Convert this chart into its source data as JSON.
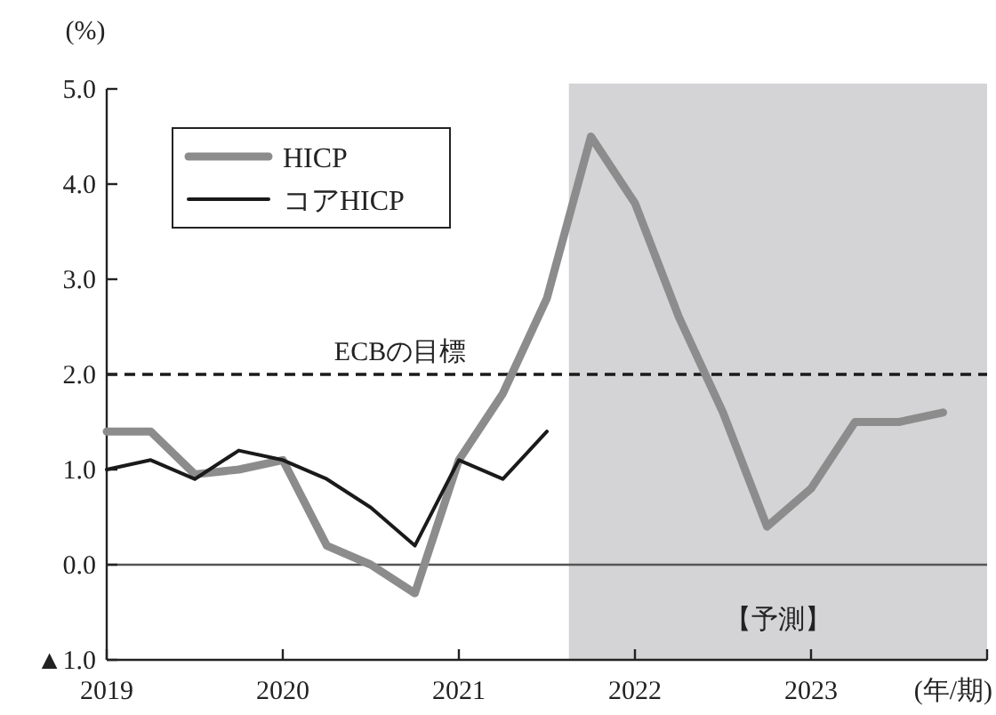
{
  "chart_data": {
    "type": "line",
    "ylabel": "(%)",
    "xlabel": "(年/期)",
    "x": [
      2019,
      2019.25,
      2019.5,
      2019.75,
      2020,
      2020.25,
      2020.5,
      2020.75,
      2021,
      2021.25,
      2021.5,
      2021.75,
      2022,
      2022.25,
      2022.5,
      2022.75,
      2023,
      2023.25,
      2023.5,
      2023.75
    ],
    "series": [
      {
        "name": "HICP",
        "color": "#8c8c8c",
        "values": [
          1.4,
          1.4,
          0.95,
          1.0,
          1.1,
          0.2,
          0.0,
          -0.3,
          1.1,
          1.8,
          2.8,
          4.5,
          3.8,
          2.6,
          1.6,
          0.4,
          0.8,
          1.5,
          1.5,
          1.6
        ]
      },
      {
        "name": "コアHICP",
        "color": "#1a1a1a",
        "values": [
          1.0,
          1.1,
          0.9,
          1.2,
          1.1,
          0.9,
          0.6,
          0.2,
          1.1,
          0.9,
          1.4,
          null,
          null,
          null,
          null,
          null,
          null,
          null,
          null,
          null
        ]
      }
    ],
    "xlim": [
      2019,
      2024
    ],
    "xticks": [
      2019,
      2020,
      2021,
      2022,
      2023,
      {
        "value": 2024,
        "label": null
      }
    ],
    "ylim": [
      -1,
      5
    ],
    "yticks": [
      {
        "value": -1,
        "label": "▲1.0"
      },
      {
        "value": 0,
        "label": "0.0"
      },
      {
        "value": 1,
        "label": "1.0"
      },
      {
        "value": 2,
        "label": "2.0"
      },
      {
        "value": 3,
        "label": "3.0"
      },
      {
        "value": 4,
        "label": "4.0"
      },
      {
        "value": 5,
        "label": "5.0"
      }
    ],
    "ref_lines": [
      {
        "axis": "y",
        "value": 2,
        "label": "ECBの目標",
        "line_style": "dashed",
        "color": "#1a1a1a"
      },
      {
        "axis": "y",
        "value": 0,
        "line_style": "solid",
        "color": "#555555"
      }
    ],
    "bands": [
      {
        "axis": "x",
        "from": 2021.625,
        "to": 2024,
        "label": "【予測】",
        "color": "#d4d4d6"
      }
    ],
    "legend": "top left",
    "grid": false,
    "line_style": "solid",
    "marker": "none"
  }
}
